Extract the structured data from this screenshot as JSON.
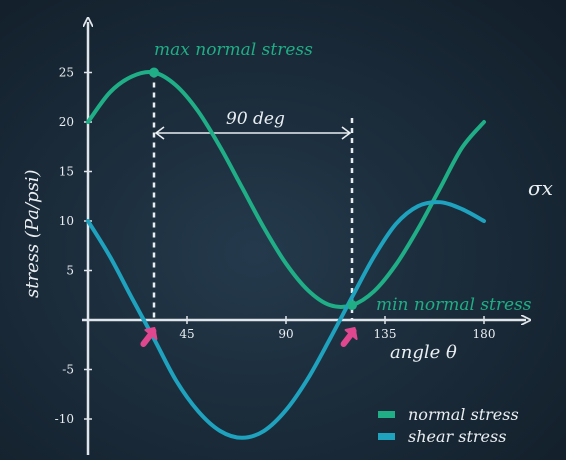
{
  "chart_data": {
    "type": "line",
    "xlabel": "angle θ",
    "ylabel": "stress (Pa/psi)",
    "xlim": [
      0,
      200
    ],
    "ylim": [
      -12.5,
      29
    ],
    "x_ticks": [
      45,
      90,
      135,
      180
    ],
    "y_ticks": [
      25,
      20,
      15,
      10,
      5,
      -5,
      -10
    ],
    "series": [
      {
        "name": "normal stress",
        "color": "#1fae86",
        "x": [
          0,
          10,
          20,
          30,
          40,
          50,
          60,
          70,
          80,
          90,
          100,
          110,
          120,
          130,
          140,
          150,
          160,
          170,
          180
        ],
        "y": [
          20.0,
          23.0,
          24.6,
          25.0,
          23.7,
          21.1,
          17.5,
          13.4,
          9.3,
          5.7,
          3.0,
          1.5,
          1.5,
          2.9,
          5.6,
          9.2,
          13.3,
          17.4,
          20.0
        ]
      },
      {
        "name": "shear stress",
        "color": "#1ea2be",
        "x": [
          0,
          10,
          20,
          30,
          40,
          50,
          60,
          70,
          80,
          90,
          100,
          110,
          120,
          130,
          140,
          150,
          160,
          170,
          180
        ],
        "y": [
          10.0,
          6.4,
          2.2,
          -1.9,
          -6.1,
          -9.2,
          -11.2,
          -11.9,
          -11.2,
          -9.1,
          -5.9,
          -1.9,
          2.3,
          6.4,
          9.7,
          11.5,
          11.9,
          11.2,
          10.0
        ]
      }
    ],
    "annotations": {
      "max_label": "max normal stress",
      "min_label": "min normal stress",
      "span_label": "90 deg",
      "max_point": {
        "x": 30,
        "y": 25
      },
      "min_point": {
        "x": 120,
        "y": 1.5
      },
      "zero_markers_x": [
        27,
        118
      ]
    },
    "legend": {
      "position": "bottom-right",
      "items": [
        "normal stress",
        "shear stress"
      ]
    },
    "extra_label": "σx"
  },
  "colors": {
    "normal": "#1fae86",
    "shear": "#1ea2be",
    "marker": "#e0478f",
    "axis": "#dfe5ea"
  }
}
